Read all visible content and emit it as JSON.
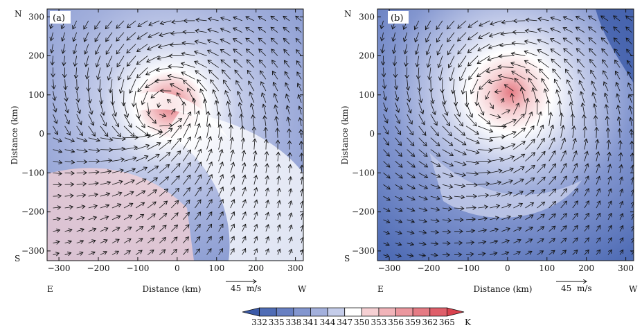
{
  "chart_data": [
    {
      "type": "heatmap",
      "panel_label": "(a)",
      "xlabel": "Distance (km)",
      "ylabel": "Distance (km)",
      "xlim": [
        -330,
        320
      ],
      "ylim": [
        -325,
        320
      ],
      "xticks": [
        -300,
        -200,
        -100,
        0,
        100,
        200,
        300
      ],
      "yticks": [
        -300,
        -200,
        -100,
        0,
        100,
        200,
        300
      ],
      "compass": {
        "top": "N",
        "bottom": "S",
        "left": "E",
        "right": "W"
      },
      "center": [
        -30,
        70
      ],
      "reference_vector": {
        "value": 45,
        "unit": "m/s"
      }
    },
    {
      "type": "heatmap",
      "panel_label": "(b)",
      "xlabel": "Distance (km)",
      "ylabel": "Distance (km)",
      "xlim": [
        -330,
        320
      ],
      "ylim": [
        -325,
        320
      ],
      "xticks": [
        -300,
        -200,
        -100,
        0,
        100,
        200,
        300
      ],
      "yticks": [
        -300,
        -200,
        -100,
        0,
        100,
        200,
        300
      ],
      "compass": {
        "top": "N",
        "bottom": "S",
        "left": "E",
        "right": "W"
      },
      "center": [
        -20,
        85
      ],
      "reference_vector": {
        "value": 45,
        "unit": "m/s"
      }
    }
  ],
  "colorbar": {
    "levels": [
      332,
      335,
      338,
      341,
      344,
      347,
      350,
      353,
      356,
      359,
      362,
      365
    ],
    "unit": "K",
    "colors": [
      "#3b5aa8",
      "#4f6cb5",
      "#6880c2",
      "#8396cf",
      "#a3b0dc",
      "#c5cdea",
      "#ffffff",
      "#f6d0d3",
      "#f1b4b9",
      "#eb979e",
      "#e57b84",
      "#df5f6a",
      "#d9434f"
    ]
  }
}
